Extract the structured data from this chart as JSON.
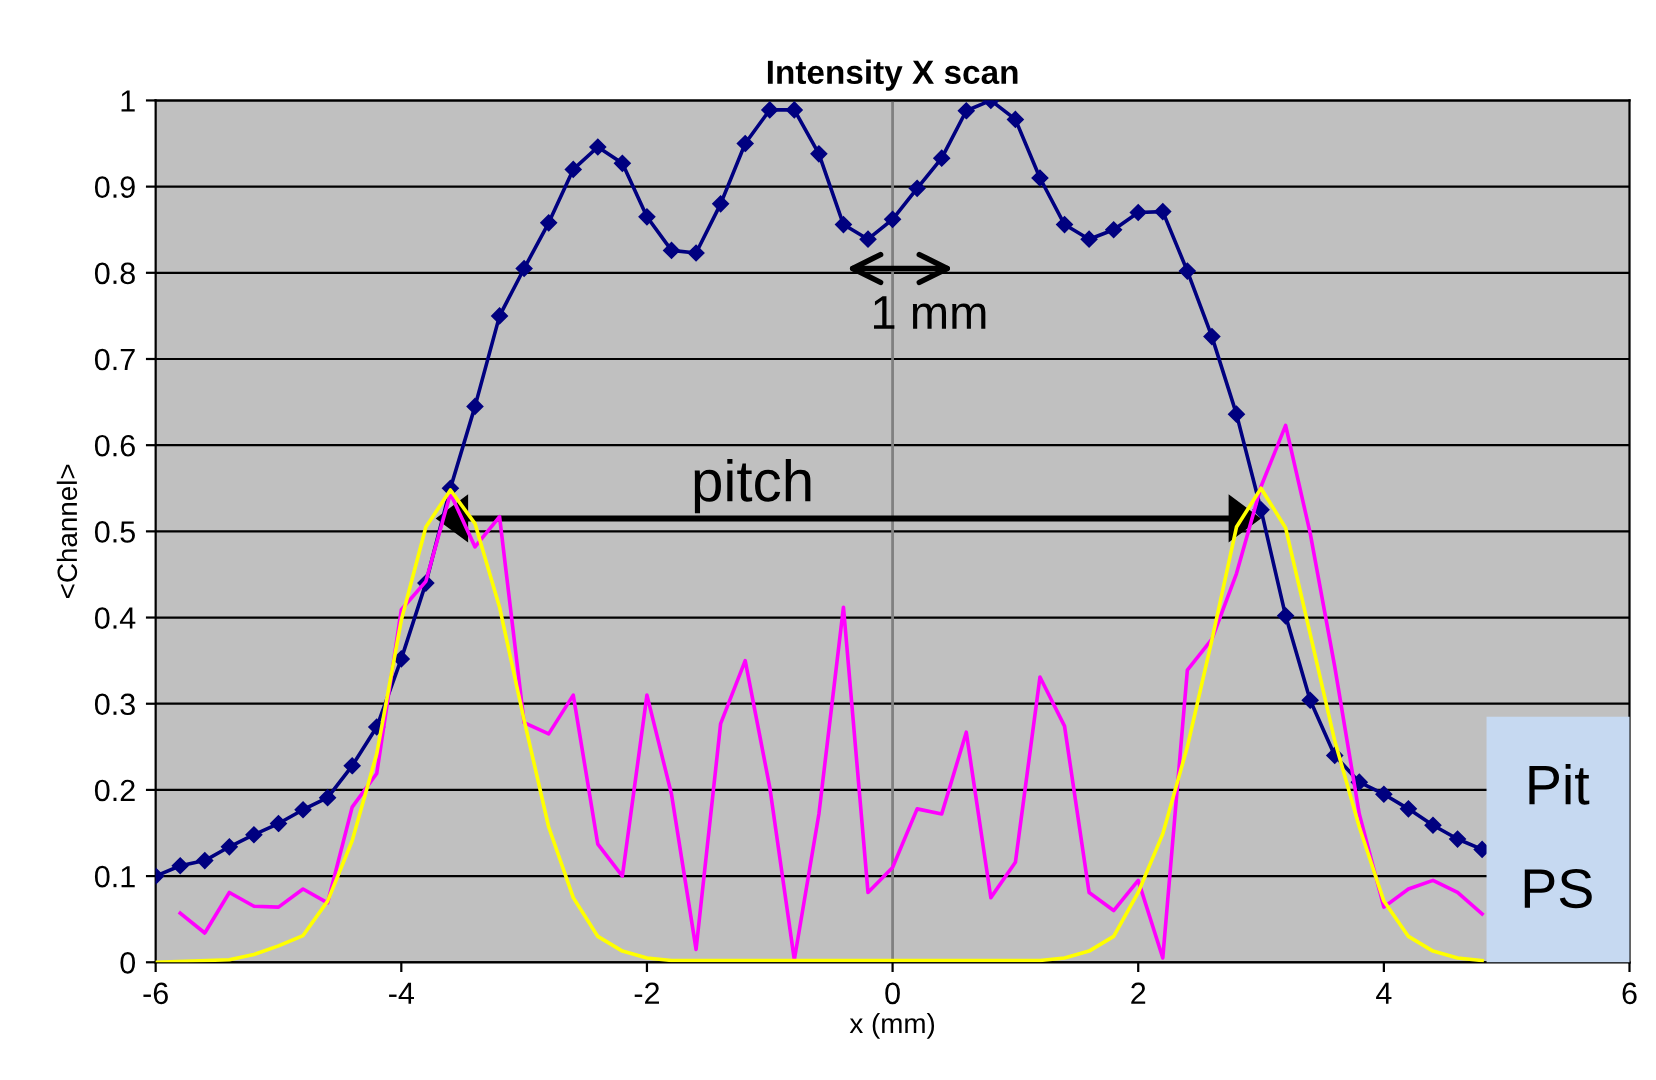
{
  "chart_data": {
    "type": "line",
    "title": "Intensity X scan",
    "xlabel": "x (mm)",
    "ylabel": "<Channel>",
    "xlim": [
      -6,
      6
    ],
    "xticks": [
      -6,
      -4,
      -2,
      0,
      2,
      4,
      6
    ],
    "ylim": [
      0,
      1
    ],
    "yticks": [
      0,
      0.1,
      0.2,
      0.3,
      0.4,
      0.5,
      0.6,
      0.7,
      0.8,
      0.9,
      1
    ],
    "grid": "y",
    "legend": false,
    "ref_lines": [
      {
        "axis": "x",
        "value": 0,
        "color": "#808080"
      }
    ],
    "annotations": [
      "1 mm",
      "pitch",
      "Pit",
      "PS"
    ],
    "series": [
      {
        "color": "#000080",
        "marker": "diamond",
        "x": [
          -6,
          -5.8,
          -5.6,
          -5.4,
          -5.2,
          -5.0,
          -4.8,
          -4.6,
          -4.4,
          -4.2,
          -4.0,
          -3.8,
          -3.6,
          -3.4,
          -3.2,
          -3.0,
          -2.8,
          -2.6,
          -2.4,
          -2.2,
          -2.0,
          -1.8,
          -1.6,
          -1.4,
          -1.2,
          -1.0,
          -0.8,
          -0.6,
          -0.4,
          -0.2,
          0.0,
          0.2,
          0.4,
          0.6,
          0.8,
          1.0,
          1.2,
          1.4,
          1.6,
          1.8,
          2.0,
          2.2,
          2.4,
          2.6,
          2.8,
          3.0,
          3.2,
          3.4,
          3.6,
          3.8,
          4.0,
          4.2,
          4.4,
          4.6,
          4.8
        ],
        "values": [
          0.1,
          0.112,
          0.118,
          0.134,
          0.148,
          0.161,
          0.177,
          0.191,
          0.228,
          0.273,
          0.352,
          0.44,
          0.55,
          0.645,
          0.75,
          0.805,
          0.858,
          0.92,
          0.946,
          0.927,
          0.865,
          0.826,
          0.823,
          0.88,
          0.95,
          0.989,
          0.989,
          0.938,
          0.856,
          0.839,
          0.862,
          0.898,
          0.933,
          0.988,
          1.0,
          0.978,
          0.91,
          0.856,
          0.839,
          0.85,
          0.87,
          0.871,
          0.802,
          0.726,
          0.636,
          0.525,
          0.402,
          0.304,
          0.24,
          0.209,
          0.195,
          0.178,
          0.159,
          0.143,
          0.131
        ]
      },
      {
        "color": "#ff00ff",
        "marker": "none",
        "x": [
          -5.8,
          -5.6,
          -5.4,
          -5.2,
          -5.0,
          -4.8,
          -4.6,
          -4.4,
          -4.2,
          -4.0,
          -3.8,
          -3.6,
          -3.4,
          -3.2,
          -3.0,
          -2.8,
          -2.6,
          -2.4,
          -2.2,
          -2.0,
          -1.8,
          -1.6,
          -1.4,
          -1.2,
          -1.0,
          -0.8,
          -0.6,
          -0.4,
          -0.2,
          0.0,
          0.2,
          0.4,
          0.6,
          0.8,
          1.0,
          1.2,
          1.4,
          1.6,
          1.8,
          2.0,
          2.2,
          2.4,
          2.6,
          2.8,
          3.0,
          3.2,
          3.4,
          3.6,
          3.8,
          4.0,
          4.2,
          4.4,
          4.6,
          4.8
        ],
        "values": [
          0.057,
          0.034,
          0.081,
          0.065,
          0.064,
          0.085,
          0.069,
          0.18,
          0.219,
          0.409,
          0.442,
          0.544,
          0.482,
          0.517,
          0.278,
          0.265,
          0.31,
          0.137,
          0.1,
          0.31,
          0.195,
          0.015,
          0.277,
          0.35,
          0.203,
          0.003,
          0.172,
          0.412,
          0.081,
          0.11,
          0.178,
          0.172,
          0.267,
          0.075,
          0.116,
          0.331,
          0.274,
          0.081,
          0.06,
          0.095,
          0.005,
          0.339,
          0.375,
          0.451,
          0.552,
          0.623,
          0.498,
          0.343,
          0.172,
          0.064,
          0.085,
          0.095,
          0.081,
          0.056
        ]
      },
      {
        "color": "#ffff00",
        "marker": "none",
        "x": [
          -6,
          -5.4,
          -5.2,
          -5.0,
          -4.8,
          -4.6,
          -4.4,
          -4.2,
          -4.0,
          -3.8,
          -3.6,
          -3.4,
          -3.2,
          -3.0,
          -2.8,
          -2.6,
          -2.4,
          -2.2,
          -2.0,
          -1.8,
          1.2,
          1.4,
          1.6,
          1.8,
          2.0,
          2.2,
          2.4,
          2.6,
          2.8,
          3.0,
          3.2,
          3.4,
          3.6,
          3.8,
          4.0,
          4.2,
          4.4,
          4.6,
          4.8
        ],
        "values": [
          0,
          0.003,
          0.009,
          0.019,
          0.031,
          0.071,
          0.141,
          0.242,
          0.397,
          0.505,
          0.548,
          0.509,
          0.412,
          0.281,
          0.157,
          0.075,
          0.03,
          0.013,
          0.005,
          0.002,
          0.002,
          0.005,
          0.013,
          0.03,
          0.081,
          0.149,
          0.25,
          0.374,
          0.505,
          0.55,
          0.504,
          0.381,
          0.257,
          0.157,
          0.071,
          0.03,
          0.013,
          0.005,
          0.002
        ]
      }
    ]
  }
}
